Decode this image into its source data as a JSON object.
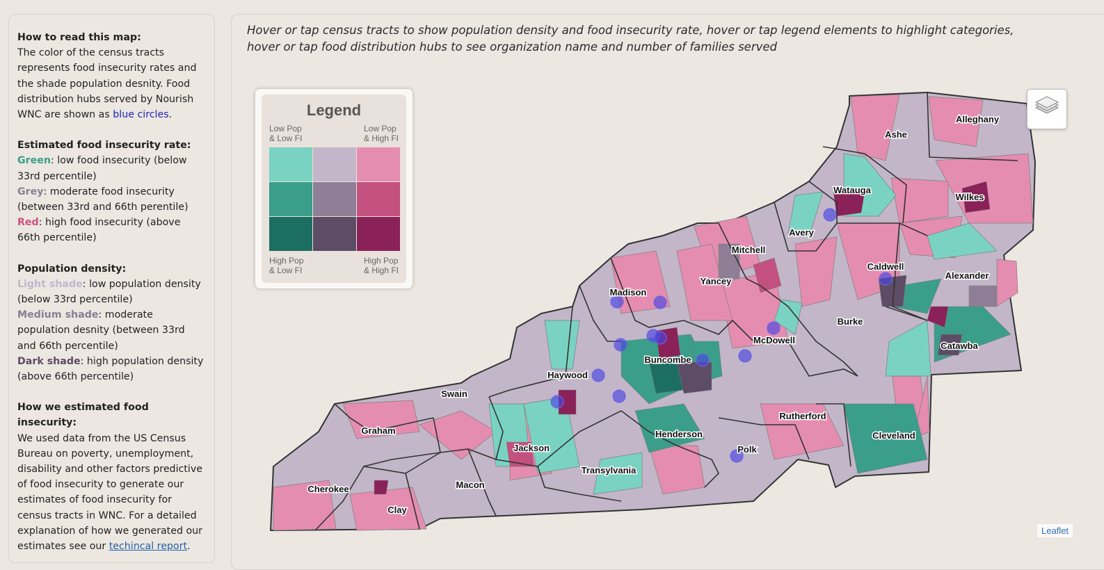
{
  "sidebar": {
    "read_title": "How to read this map:",
    "read_text_1": "The color of the census tracts represents food insecurity rates and the shade population desnity. Food distribution hubs served by Nourish WNC are shown as ",
    "read_link": "blue circles",
    "read_text_2": ".",
    "fi_title": "Estimated food insecurity rate:",
    "fi_green_word": "Green",
    "fi_green_text": ": low food insecurity (below 33rd percentile)",
    "fi_grey_word": "Grey",
    "fi_grey_text": ": moderate food insecurity (between 33rd and 66th perentile)",
    "fi_red_word": "Red",
    "fi_red_text": ": high food insecurity (above 66th percentile)",
    "pd_title": "Population density:",
    "pd_light_word": "Light shade",
    "pd_light_text": ": low population density (below 33rd percentile)",
    "pd_medium_word": "Medium shade",
    "pd_medium_text": ": moderate population desnity (between 33rd and 66th percentile)",
    "pd_dark_word": "Dark shade",
    "pd_dark_text": ": high population density (above 66th percentile)",
    "method_title": "How we estimated food insecurity:",
    "method_text": "We used data from the US Census Bureau on poverty, unemployment, disability and other factors predictive of food insecurity to generate our estimates of food insecurity for census tracts in WNC. For a detailed explanation of how we generated our estimates see our ",
    "method_link": "techincal report",
    "method_end": "."
  },
  "instructions": "Hover or tap census tracts to show population density and food insecurity rate, hover or tap legend elements to highlight categories, hover or tap food distribution hubs to see organization name and number of families served",
  "legend": {
    "title": "Legend",
    "top_left": "Low Pop\n& Low FI",
    "top_right": "Low Pop\n& High FI",
    "bottom_left": "High Pop\n& Low FI",
    "bottom_right": "High Pop\n& High FI",
    "colors": [
      [
        "#7ad3c2",
        "#c3b6c9",
        "#e58db0"
      ],
      [
        "#3a9e8a",
        "#8e7f96",
        "#c2517f"
      ],
      [
        "#1d6e62",
        "#5d4c66",
        "#8a2159"
      ]
    ]
  },
  "layers_control": {
    "icon": "layers-icon"
  },
  "attribution": "Leaflet",
  "colors": {
    "county_border": "#333333",
    "tract_border": "#7c7c7c",
    "hub": "#4a45e0",
    "background": "#ece7e1"
  },
  "counties": [
    "Alleghany",
    "Ashe",
    "Watauga",
    "Wilkes",
    "Avery",
    "Mitchell",
    "Caldwell",
    "Alexander",
    "Madison",
    "Yancey",
    "Burke",
    "McDowell",
    "Catawba",
    "Buncombe",
    "Haywood",
    "Swain",
    "Rutherford",
    "Graham",
    "Henderson",
    "Cleveland",
    "Polk",
    "Jackson",
    "Transylvania",
    "Macon",
    "Cherokee",
    "Clay"
  ]
}
